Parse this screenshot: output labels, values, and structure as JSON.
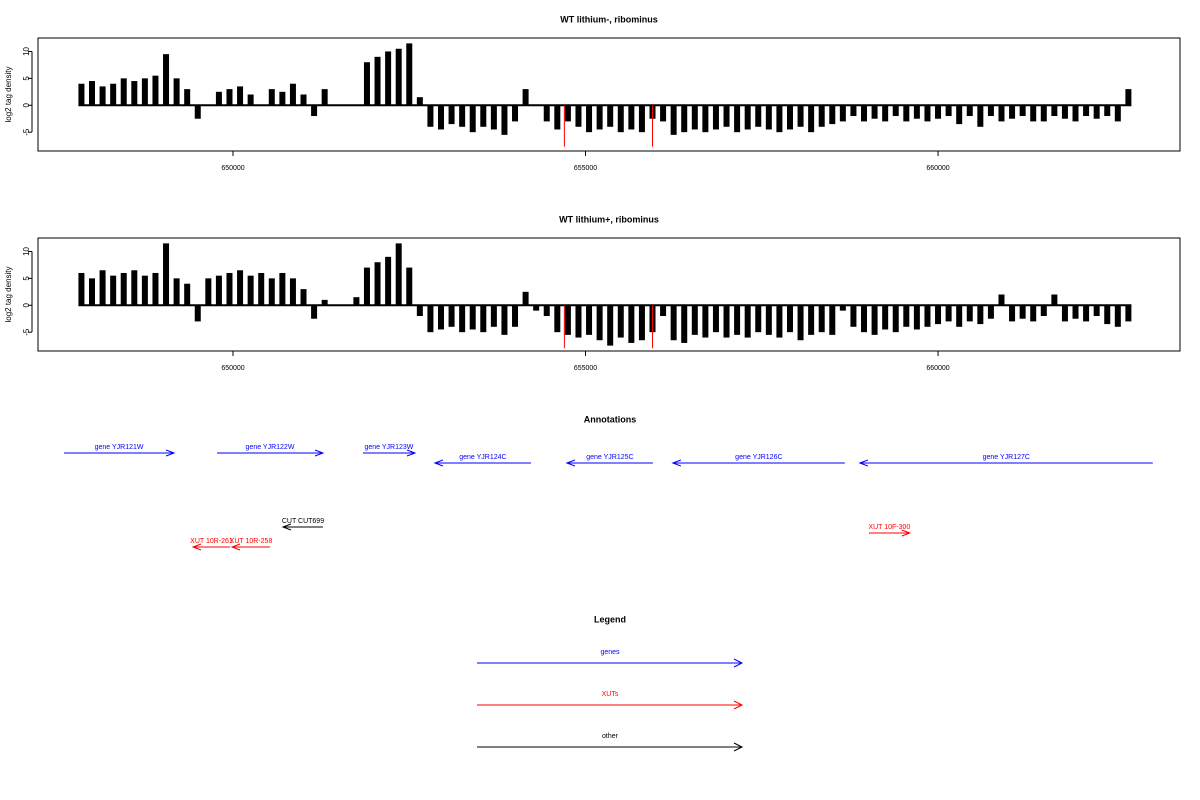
{
  "chart_data": [
    {
      "type": "bar",
      "title": "WT lithium-, ribominus",
      "y_label": "log2 tag density",
      "xlim": [
        647234,
        663432
      ],
      "ylim": [
        -8.5,
        12.5
      ],
      "xticks": [
        650000,
        655000,
        660000
      ],
      "yticks": [
        -5,
        0,
        5,
        10
      ],
      "color": "#000000",
      "x": [
        647850,
        648000,
        648150,
        648300,
        648450,
        648600,
        648750,
        648900,
        649050,
        649200,
        649350,
        649500,
        649650,
        649800,
        649950,
        650100,
        650250,
        650400,
        650550,
        650700,
        650850,
        651000,
        651150,
        651300,
        651450,
        651600,
        651750,
        651900,
        652050,
        652200,
        652350,
        652500,
        652650,
        652800,
        652950,
        653100,
        653250,
        653400,
        653550,
        653700,
        653850,
        654000,
        654150,
        654300,
        654450,
        654600,
        654750,
        654900,
        655050,
        655200,
        655350,
        655500,
        655650,
        655800,
        655950,
        656100,
        656250,
        656400,
        656550,
        656700,
        656850,
        657000,
        657150,
        657300,
        657450,
        657600,
        657750,
        657900,
        658050,
        658200,
        658350,
        658500,
        658650,
        658800,
        658950,
        659100,
        659250,
        659400,
        659550,
        659700,
        659850,
        660000,
        660150,
        660300,
        660450,
        660600,
        660750,
        660900,
        661050,
        661200,
        661350,
        661500,
        661650,
        661800,
        661950,
        662100,
        662250,
        662400,
        662550,
        662700
      ],
      "values": [
        4,
        4.5,
        3.5,
        4,
        5,
        4.5,
        5,
        5.5,
        9.5,
        5,
        3,
        -2.5,
        0,
        2.5,
        3,
        3.5,
        2,
        0,
        3,
        2.5,
        4,
        2,
        -2,
        3,
        0,
        0,
        0,
        8,
        9,
        10,
        10.5,
        11.5,
        1.5,
        -4,
        -4.5,
        -3.5,
        -4,
        -5,
        -4,
        -4.5,
        -5.5,
        -3,
        3,
        0,
        -3,
        -4.5,
        -3,
        -4,
        -5,
        -4.5,
        -4,
        -5,
        -4.5,
        -5,
        -2.5,
        -3,
        -5.5,
        -5,
        -4.5,
        -5,
        -4.5,
        -4,
        -5,
        -4.5,
        -4,
        -4.5,
        -5,
        -4.5,
        -4,
        -5,
        -4,
        -3.5,
        -3,
        -2,
        -3,
        -2.5,
        -3,
        -2,
        -3,
        -2.5,
        -3,
        -2.5,
        -2,
        -3.5,
        -2,
        -4,
        -2,
        -3,
        -2.5,
        -2,
        -3,
        -3,
        -2,
        -2.5,
        -3,
        -2,
        -2.5,
        -2,
        -3,
        3
      ],
      "highlights": {
        "color": "#ff0000",
        "x": [
          654700,
          655950
        ],
        "values": [
          -7.7,
          -7.7
        ]
      }
    },
    {
      "type": "bar",
      "title": "WT lithium+, ribominus",
      "y_label": "log2 tag density",
      "xlim": [
        647234,
        663432
      ],
      "ylim": [
        -8.5,
        12.5
      ],
      "xticks": [
        650000,
        655000,
        660000
      ],
      "yticks": [
        -5,
        0,
        5,
        10
      ],
      "color": "#000000",
      "x": [
        647850,
        648000,
        648150,
        648300,
        648450,
        648600,
        648750,
        648900,
        649050,
        649200,
        649350,
        649500,
        649650,
        649800,
        649950,
        650100,
        650250,
        650400,
        650550,
        650700,
        650850,
        651000,
        651150,
        651300,
        651450,
        651600,
        651750,
        651900,
        652050,
        652200,
        652350,
        652500,
        652650,
        652800,
        652950,
        653100,
        653250,
        653400,
        653550,
        653700,
        653850,
        654000,
        654150,
        654300,
        654450,
        654600,
        654750,
        654900,
        655050,
        655200,
        655350,
        655500,
        655650,
        655800,
        655950,
        656100,
        656250,
        656400,
        656550,
        656700,
        656850,
        657000,
        657150,
        657300,
        657450,
        657600,
        657750,
        657900,
        658050,
        658200,
        658350,
        658500,
        658650,
        658800,
        658950,
        659100,
        659250,
        659400,
        659550,
        659700,
        659850,
        660000,
        660150,
        660300,
        660450,
        660600,
        660750,
        660900,
        661050,
        661200,
        661350,
        661500,
        661650,
        661800,
        661950,
        662100,
        662250,
        662400,
        662550,
        662700
      ],
      "values": [
        6,
        5,
        6.5,
        5.5,
        6,
        6.5,
        5.5,
        6,
        11.5,
        5,
        4,
        -3,
        5,
        5.5,
        6,
        6.5,
        5.5,
        6,
        5,
        6,
        5,
        3,
        -2.5,
        1,
        0,
        0,
        1.5,
        7,
        8,
        9,
        11.5,
        7,
        -2,
        -5,
        -4.5,
        -4,
        -5,
        -4.5,
        -5,
        -4,
        -5.5,
        -4,
        2.5,
        -1,
        -2,
        -5,
        -5.5,
        -6,
        -5.5,
        -6.5,
        -7.5,
        -6,
        -7,
        -6.5,
        -5,
        -2,
        -6.5,
        -7,
        -5.5,
        -6,
        -5,
        -6,
        -5.5,
        -6,
        -5,
        -5.5,
        -6,
        -5,
        -6.5,
        -5.5,
        -5,
        -5.5,
        -1,
        -4,
        -5,
        -5.5,
        -4.5,
        -5,
        -4,
        -4.5,
        -4,
        -3.5,
        -3,
        -4,
        -3,
        -3.5,
        -2.5,
        2,
        -3,
        -2.5,
        -3,
        -2,
        2,
        -3,
        -2.5,
        -3,
        -2,
        -3.5,
        -4,
        -3
      ],
      "highlights": {
        "color": "#ff0000",
        "x": [
          654700,
          655950
        ],
        "values": [
          -8,
          -8
        ]
      }
    }
  ],
  "annotations": {
    "title": "Annotations",
    "tracks": [
      {
        "name": "genes",
        "color": "#0000ff",
        "features": [
          {
            "label": "gene YJR121W",
            "from": 647604,
            "to": 649163
          },
          {
            "label": "gene YJR122W",
            "from": 649773,
            "to": 651276
          },
          {
            "label": "gene YJR123W",
            "from": 651843,
            "to": 652581
          },
          {
            "label": "gene YJR124C",
            "from": 654226,
            "to": 652864
          },
          {
            "label": "gene YJR125C",
            "from": 655956,
            "to": 654736
          },
          {
            "label": "gene YJR126C",
            "from": 658678,
            "to": 656239
          },
          {
            "label": "gene YJR127C",
            "from": 663046,
            "to": 658891
          }
        ]
      },
      {
        "name": "XUTs",
        "color": "#ff0000",
        "features": [
          {
            "label": "XUT 10R-261",
            "from": 649957,
            "to": 649433
          },
          {
            "label": "XUT 10R-258",
            "from": 650525,
            "to": 649986
          },
          {
            "label": "XUT 10F-300",
            "from": 659019,
            "to": 659600
          }
        ]
      },
      {
        "name": "other",
        "color": "#000000",
        "features": [
          {
            "label": "CUT CUT699",
            "from": 651276,
            "to": 650709
          }
        ]
      }
    ]
  },
  "legend": {
    "title": "Legend"
  }
}
